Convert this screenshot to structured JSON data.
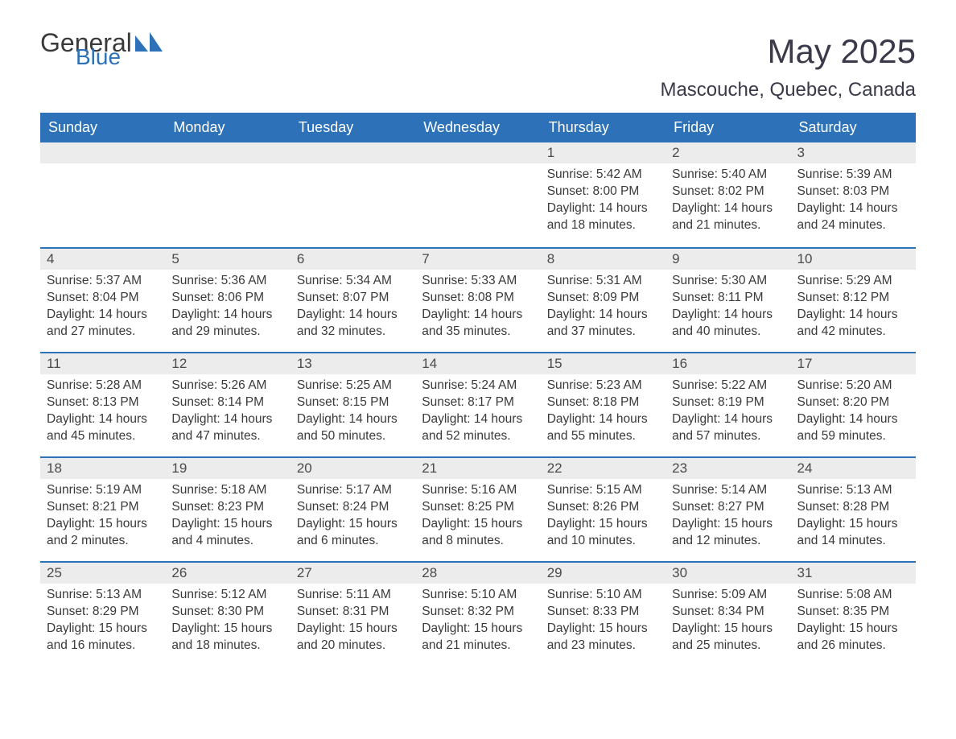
{
  "brand": {
    "text1": "General",
    "text2": "Blue",
    "color_general": "#3a3a3a",
    "color_blue": "#2d72b8",
    "icon_color": "#2d72b8"
  },
  "title": "May 2025",
  "location": "Mascouche, Quebec, Canada",
  "colors": {
    "header_bg": "#2d72b8",
    "header_text": "#ffffff",
    "daynum_bg": "#ececec",
    "text": "#3a3a3a",
    "rule": "#2d72b8",
    "page_bg": "#ffffff"
  },
  "fonts": {
    "month_title_size": 42,
    "location_size": 24,
    "day_header_size": 18,
    "daynum_size": 17,
    "body_size": 15.5
  },
  "day_headers": [
    "Sunday",
    "Monday",
    "Tuesday",
    "Wednesday",
    "Thursday",
    "Friday",
    "Saturday"
  ],
  "weeks": [
    [
      null,
      null,
      null,
      null,
      {
        "n": "1",
        "sunrise": "5:42 AM",
        "sunset": "8:00 PM",
        "daylight": "14 hours and 18 minutes."
      },
      {
        "n": "2",
        "sunrise": "5:40 AM",
        "sunset": "8:02 PM",
        "daylight": "14 hours and 21 minutes."
      },
      {
        "n": "3",
        "sunrise": "5:39 AM",
        "sunset": "8:03 PM",
        "daylight": "14 hours and 24 minutes."
      }
    ],
    [
      {
        "n": "4",
        "sunrise": "5:37 AM",
        "sunset": "8:04 PM",
        "daylight": "14 hours and 27 minutes."
      },
      {
        "n": "5",
        "sunrise": "5:36 AM",
        "sunset": "8:06 PM",
        "daylight": "14 hours and 29 minutes."
      },
      {
        "n": "6",
        "sunrise": "5:34 AM",
        "sunset": "8:07 PM",
        "daylight": "14 hours and 32 minutes."
      },
      {
        "n": "7",
        "sunrise": "5:33 AM",
        "sunset": "8:08 PM",
        "daylight": "14 hours and 35 minutes."
      },
      {
        "n": "8",
        "sunrise": "5:31 AM",
        "sunset": "8:09 PM",
        "daylight": "14 hours and 37 minutes."
      },
      {
        "n": "9",
        "sunrise": "5:30 AM",
        "sunset": "8:11 PM",
        "daylight": "14 hours and 40 minutes."
      },
      {
        "n": "10",
        "sunrise": "5:29 AM",
        "sunset": "8:12 PM",
        "daylight": "14 hours and 42 minutes."
      }
    ],
    [
      {
        "n": "11",
        "sunrise": "5:28 AM",
        "sunset": "8:13 PM",
        "daylight": "14 hours and 45 minutes."
      },
      {
        "n": "12",
        "sunrise": "5:26 AM",
        "sunset": "8:14 PM",
        "daylight": "14 hours and 47 minutes."
      },
      {
        "n": "13",
        "sunrise": "5:25 AM",
        "sunset": "8:15 PM",
        "daylight": "14 hours and 50 minutes."
      },
      {
        "n": "14",
        "sunrise": "5:24 AM",
        "sunset": "8:17 PM",
        "daylight": "14 hours and 52 minutes."
      },
      {
        "n": "15",
        "sunrise": "5:23 AM",
        "sunset": "8:18 PM",
        "daylight": "14 hours and 55 minutes."
      },
      {
        "n": "16",
        "sunrise": "5:22 AM",
        "sunset": "8:19 PM",
        "daylight": "14 hours and 57 minutes."
      },
      {
        "n": "17",
        "sunrise": "5:20 AM",
        "sunset": "8:20 PM",
        "daylight": "14 hours and 59 minutes."
      }
    ],
    [
      {
        "n": "18",
        "sunrise": "5:19 AM",
        "sunset": "8:21 PM",
        "daylight": "15 hours and 2 minutes."
      },
      {
        "n": "19",
        "sunrise": "5:18 AM",
        "sunset": "8:23 PM",
        "daylight": "15 hours and 4 minutes."
      },
      {
        "n": "20",
        "sunrise": "5:17 AM",
        "sunset": "8:24 PM",
        "daylight": "15 hours and 6 minutes."
      },
      {
        "n": "21",
        "sunrise": "5:16 AM",
        "sunset": "8:25 PM",
        "daylight": "15 hours and 8 minutes."
      },
      {
        "n": "22",
        "sunrise": "5:15 AM",
        "sunset": "8:26 PM",
        "daylight": "15 hours and 10 minutes."
      },
      {
        "n": "23",
        "sunrise": "5:14 AM",
        "sunset": "8:27 PM",
        "daylight": "15 hours and 12 minutes."
      },
      {
        "n": "24",
        "sunrise": "5:13 AM",
        "sunset": "8:28 PM",
        "daylight": "15 hours and 14 minutes."
      }
    ],
    [
      {
        "n": "25",
        "sunrise": "5:13 AM",
        "sunset": "8:29 PM",
        "daylight": "15 hours and 16 minutes."
      },
      {
        "n": "26",
        "sunrise": "5:12 AM",
        "sunset": "8:30 PM",
        "daylight": "15 hours and 18 minutes."
      },
      {
        "n": "27",
        "sunrise": "5:11 AM",
        "sunset": "8:31 PM",
        "daylight": "15 hours and 20 minutes."
      },
      {
        "n": "28",
        "sunrise": "5:10 AM",
        "sunset": "8:32 PM",
        "daylight": "15 hours and 21 minutes."
      },
      {
        "n": "29",
        "sunrise": "5:10 AM",
        "sunset": "8:33 PM",
        "daylight": "15 hours and 23 minutes."
      },
      {
        "n": "30",
        "sunrise": "5:09 AM",
        "sunset": "8:34 PM",
        "daylight": "15 hours and 25 minutes."
      },
      {
        "n": "31",
        "sunrise": "5:08 AM",
        "sunset": "8:35 PM",
        "daylight": "15 hours and 26 minutes."
      }
    ]
  ],
  "labels": {
    "sunrise": "Sunrise: ",
    "sunset": "Sunset: ",
    "daylight": "Daylight: "
  }
}
